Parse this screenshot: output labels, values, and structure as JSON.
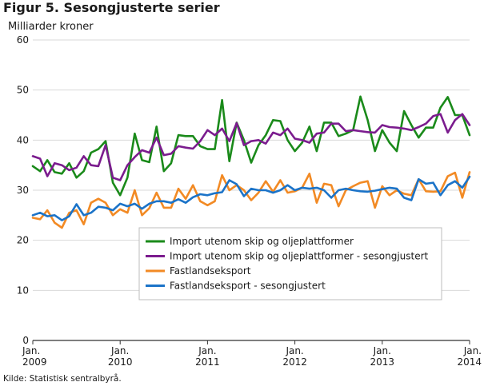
{
  "chart_data": {
    "type": "line",
    "title": "Figur 5. Sesongjusterte serier",
    "ylabel": "Milliarder kroner",
    "xlabel": "",
    "source": "Kilde: Statistisk sentralbyrå.",
    "ylim": [
      0,
      60
    ],
    "y_ticks": [
      0,
      10,
      20,
      30,
      40,
      50,
      60
    ],
    "x_range": [
      "2009-01",
      "2014-01"
    ],
    "x_ticks": [
      {
        "month": "Jan.",
        "year": "2009",
        "index": 0
      },
      {
        "month": "Jan.",
        "year": "2010",
        "index": 12
      },
      {
        "month": "Jan.",
        "year": "2011",
        "index": 24
      },
      {
        "month": "Jan.",
        "year": "2012",
        "index": 36
      },
      {
        "month": "Jan.",
        "year": "2013",
        "index": 48
      },
      {
        "month": "Jan.",
        "year": "2014",
        "index": 60
      }
    ],
    "grid": true,
    "legend_position": "bottom-right",
    "series": [
      {
        "name": "Import utenom skip og oljeplattformer",
        "color": "#1a8a1a",
        "values": [
          34.8,
          33.8,
          36.0,
          33.6,
          33.3,
          35.4,
          32.5,
          33.8,
          37.5,
          38.2,
          39.8,
          31.5,
          29.0,
          32.5,
          41.3,
          36.0,
          35.6,
          42.7,
          33.8,
          35.4,
          41.0,
          40.8,
          40.8,
          38.8,
          38.2,
          38.2,
          48.0,
          35.8,
          43.5,
          40.0,
          35.5,
          39.0,
          41.0,
          44.0,
          43.8,
          40.0,
          37.8,
          39.5,
          42.7,
          37.8,
          43.5,
          43.5,
          40.8,
          41.3,
          42.0,
          48.7,
          44.0,
          37.8,
          42.0,
          39.5,
          37.8,
          45.8,
          43.0,
          40.5,
          42.5,
          42.5,
          46.5,
          48.6,
          45.0,
          45.0,
          41.0
        ]
      },
      {
        "name": "Import utenom skip og oljeplattformer - sesongjustert",
        "color": "#7b1c8e",
        "values": [
          36.8,
          36.3,
          32.8,
          35.4,
          35.0,
          34.0,
          34.5,
          36.8,
          35.0,
          34.8,
          39.0,
          32.5,
          32.0,
          35.0,
          36.6,
          38.0,
          37.5,
          40.5,
          37.0,
          37.3,
          38.8,
          38.5,
          38.3,
          39.8,
          42.0,
          41.0,
          42.3,
          39.8,
          43.4,
          39.0,
          39.8,
          40.0,
          39.3,
          41.5,
          41.0,
          42.3,
          40.3,
          40.0,
          39.5,
          41.3,
          41.5,
          43.3,
          43.3,
          41.8,
          42.0,
          41.8,
          41.6,
          41.5,
          43.0,
          42.6,
          42.5,
          42.3,
          42.0,
          42.6,
          43.3,
          44.8,
          45.2,
          41.5,
          44.0,
          45.2,
          43.0
        ]
      },
      {
        "name": "Fastlandseksport",
        "color": "#f28a24",
        "values": [
          24.5,
          24.2,
          26.0,
          23.5,
          22.5,
          25.5,
          26.0,
          23.2,
          27.5,
          28.3,
          27.5,
          25.0,
          26.2,
          25.5,
          30.0,
          25.0,
          26.4,
          29.5,
          26.5,
          26.5,
          30.3,
          28.3,
          31.0,
          27.8,
          27.0,
          27.8,
          33.0,
          30.0,
          31.0,
          30.0,
          28.0,
          29.5,
          31.8,
          29.7,
          32.0,
          29.5,
          29.8,
          30.5,
          33.3,
          27.5,
          31.3,
          31.0,
          26.8,
          30.0,
          30.8,
          31.5,
          31.8,
          26.5,
          30.8,
          29.0,
          30.0,
          29.3,
          29.0,
          32.2,
          29.8,
          29.7,
          29.8,
          32.8,
          33.5,
          28.5,
          33.6
        ]
      },
      {
        "name": "Fastlandseksport - sesongjustert",
        "color": "#1b73c8",
        "values": [
          25.0,
          25.5,
          24.8,
          25.0,
          24.0,
          24.8,
          27.2,
          25.0,
          25.5,
          26.7,
          26.5,
          26.0,
          27.3,
          26.8,
          27.3,
          26.3,
          27.3,
          27.8,
          27.8,
          27.5,
          28.2,
          27.5,
          28.6,
          29.2,
          29.0,
          29.4,
          29.6,
          32.0,
          31.2,
          28.8,
          30.3,
          30.0,
          30.0,
          29.5,
          30.0,
          31.0,
          30.0,
          30.5,
          30.3,
          30.5,
          30.0,
          28.5,
          30.0,
          30.3,
          30.0,
          29.8,
          29.7,
          29.9,
          30.2,
          30.5,
          30.3,
          28.5,
          28.0,
          32.2,
          31.3,
          31.5,
          29.0,
          31.0,
          31.8,
          30.5,
          32.7
        ]
      }
    ]
  }
}
